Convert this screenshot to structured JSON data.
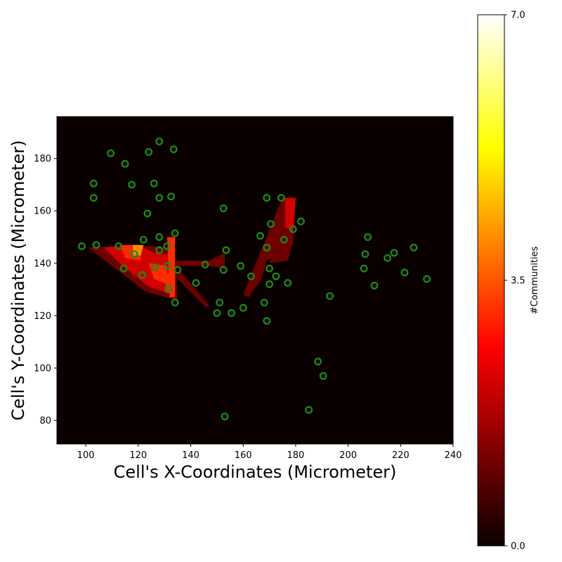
{
  "chart_data": {
    "type": "heatmap",
    "xlabel": "Cell's X-Coordinates (Micrometer)",
    "ylabel": "Cell's Y-Coordinates (Micrometer)",
    "xlim": [
      89,
      240
    ],
    "ylim": [
      71,
      196
    ],
    "x_ticks": [
      100,
      120,
      140,
      160,
      180,
      200,
      220,
      240
    ],
    "y_ticks": [
      80,
      100,
      120,
      140,
      160,
      180
    ],
    "x_tick_labels": [
      "100",
      "120",
      "140",
      "160",
      "180",
      "200",
      "220",
      "240"
    ],
    "y_tick_labels": [
      "80",
      "100",
      "120",
      "140",
      "160",
      "180"
    ],
    "colormap": "hot",
    "background_color": "#0b0000",
    "colorbar": {
      "label": "#Communities",
      "min": 0,
      "max": 7,
      "ticks": [
        0.0,
        3.5,
        7.0
      ],
      "tick_labels": [
        "0.0",
        "3.5",
        "7.0"
      ]
    },
    "heat_regions": [
      {
        "name": "left-wedge",
        "value": 1,
        "polygon": [
          [
            101,
            146
          ],
          [
            118,
            147
          ],
          [
            134,
            146
          ],
          [
            135,
            126
          ],
          [
            123,
            129
          ]
        ]
      },
      {
        "name": "left-core",
        "value": 2,
        "polygon": [
          [
            107,
            146
          ],
          [
            120,
            147
          ],
          [
            126,
            144
          ],
          [
            134,
            143
          ],
          [
            134,
            128
          ],
          [
            124,
            131
          ],
          [
            113,
            140
          ]
        ]
      },
      {
        "name": "left-hot-a",
        "value": 3,
        "polygon": [
          [
            113,
            147
          ],
          [
            121,
            147
          ],
          [
            121,
            141
          ],
          [
            115,
            142
          ]
        ]
      },
      {
        "name": "left-hot-b",
        "value": 3,
        "polygon": [
          [
            124,
            140
          ],
          [
            131,
            139
          ],
          [
            131,
            132
          ],
          [
            126,
            134
          ]
        ]
      },
      {
        "name": "left-spike",
        "value": 3,
        "polygon": [
          [
            131,
            150
          ],
          [
            134,
            150
          ],
          [
            134,
            127
          ],
          [
            132,
            127
          ]
        ]
      },
      {
        "name": "left-hot-c",
        "value": 3,
        "polygon": [
          [
            131,
            136
          ],
          [
            134,
            137
          ],
          [
            134,
            128
          ],
          [
            130,
            129
          ]
        ]
      },
      {
        "name": "left-orange",
        "value": 4,
        "polygon": [
          [
            118,
            147
          ],
          [
            122,
            147
          ],
          [
            121,
            143
          ],
          [
            118,
            143
          ]
        ]
      },
      {
        "name": "band-to-150",
        "value": 1,
        "polygon": [
          [
            134,
            141
          ],
          [
            147,
            141
          ],
          [
            153,
            144
          ],
          [
            153,
            138
          ],
          [
            147,
            139
          ],
          [
            134,
            139
          ]
        ]
      },
      {
        "name": "diagonal-strip",
        "value": 1,
        "polygon": [
          [
            136,
            137
          ],
          [
            147,
            124
          ],
          [
            146,
            123
          ],
          [
            134,
            135
          ]
        ]
      },
      {
        "name": "right-wedge",
        "value": 1,
        "polygon": [
          [
            160,
            128
          ],
          [
            175,
            165
          ],
          [
            180,
            165
          ],
          [
            179,
            147
          ],
          [
            169,
            141
          ],
          [
            167,
            134
          ],
          [
            162,
            127
          ]
        ]
      },
      {
        "name": "right-wedge-extension",
        "value": 1,
        "polygon": [
          [
            172,
            147
          ],
          [
            179,
            149
          ],
          [
            177,
            141
          ],
          [
            170,
            140
          ]
        ]
      },
      {
        "name": "right-spike-core",
        "value": 2,
        "polygon": [
          [
            176,
            165
          ],
          [
            180,
            165
          ],
          [
            179,
            152
          ],
          [
            176,
            154
          ]
        ]
      }
    ],
    "cell_points": [
      [
        98.5,
        146.5
      ],
      [
        104,
        147
      ],
      [
        109.5,
        182
      ],
      [
        103,
        170.5
      ],
      [
        103,
        165
      ],
      [
        112.5,
        146.5
      ],
      [
        115,
        178
      ],
      [
        117.5,
        170
      ],
      [
        114.5,
        138
      ],
      [
        118.5,
        143.5
      ],
      [
        122,
        149
      ],
      [
        121.5,
        135.5
      ],
      [
        123.5,
        159
      ],
      [
        124,
        182.5
      ],
      [
        126,
        170.5
      ],
      [
        126.5,
        138.5
      ],
      [
        128,
        186.5
      ],
      [
        128,
        150
      ],
      [
        128,
        145
      ],
      [
        128,
        165
      ],
      [
        131,
        146.5
      ],
      [
        131,
        139
      ],
      [
        131.5,
        130.5
      ],
      [
        132.5,
        165.5
      ],
      [
        133.5,
        183.5
      ],
      [
        134,
        151.5
      ],
      [
        134,
        125
      ],
      [
        135,
        137.5
      ],
      [
        142,
        132.5
      ],
      [
        145.5,
        139.5
      ],
      [
        150,
        121
      ],
      [
        151,
        125
      ],
      [
        152.5,
        161
      ],
      [
        152.5,
        137.5
      ],
      [
        153,
        81.5
      ],
      [
        153.5,
        145
      ],
      [
        155.5,
        121
      ],
      [
        159,
        139
      ],
      [
        160,
        123
      ],
      [
        163,
        135
      ],
      [
        166.5,
        150.5
      ],
      [
        168,
        125
      ],
      [
        169,
        118
      ],
      [
        169,
        146
      ],
      [
        169,
        165
      ],
      [
        170,
        132
      ],
      [
        170,
        138
      ],
      [
        170.5,
        155
      ],
      [
        172.5,
        135
      ],
      [
        174.5,
        165
      ],
      [
        175.5,
        149
      ],
      [
        177,
        132.5
      ],
      [
        179,
        153
      ],
      [
        182,
        156
      ],
      [
        185,
        84
      ],
      [
        188.5,
        102.5
      ],
      [
        190.5,
        97
      ],
      [
        193,
        127.5
      ],
      [
        206,
        138
      ],
      [
        206.5,
        143.5
      ],
      [
        207.5,
        150
      ],
      [
        210,
        131.5
      ],
      [
        215,
        142
      ],
      [
        217.5,
        144
      ],
      [
        221.5,
        136.5
      ],
      [
        225,
        146
      ],
      [
        230,
        134
      ]
    ],
    "point_color": "#1a8a1a"
  }
}
